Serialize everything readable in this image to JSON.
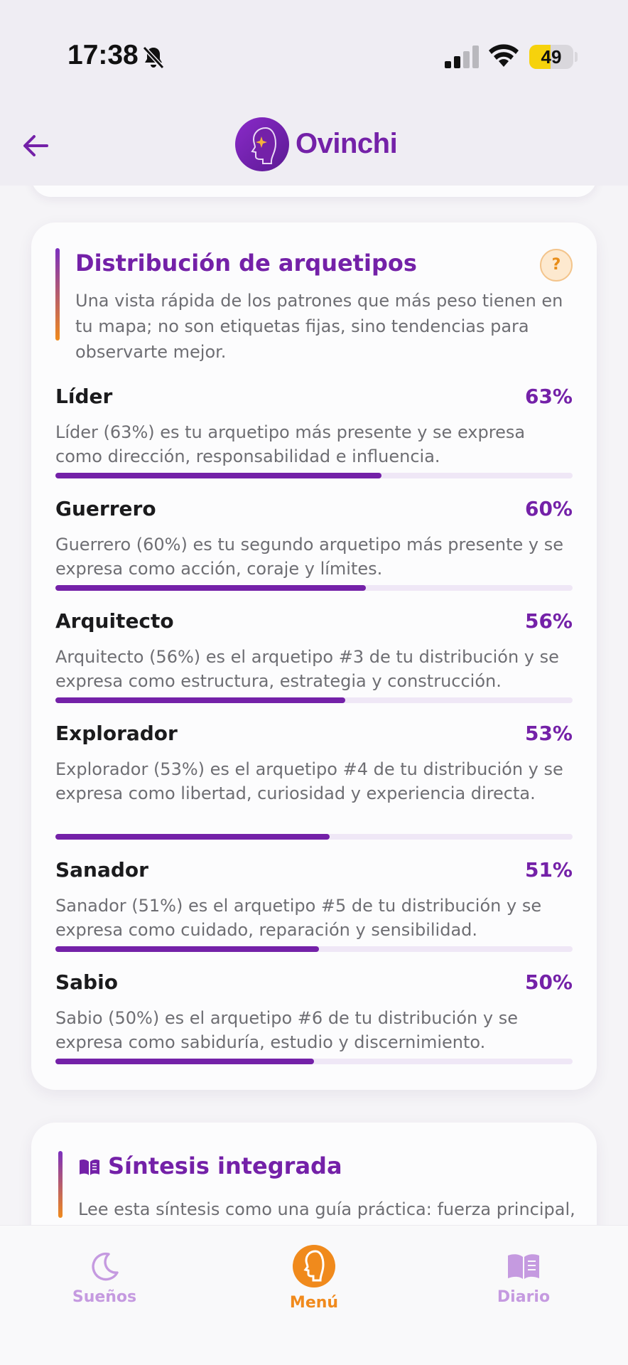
{
  "status_bar": {
    "time": "17:38",
    "battery": "49",
    "battery_level": 0.49
  },
  "header": {
    "logo_text": "Ovinchi"
  },
  "archetypes_card": {
    "title": "Distribución de arquetipos",
    "help_label": "?",
    "description": "Una vista rápida de los patrones que más peso tienen en tu mapa; no son etiquetas fijas, sino tendencias para observarte mejor.",
    "items": [
      {
        "name": "Líder",
        "percent_label": "63%",
        "value": 63,
        "description": "Líder (63%) es tu arquetipo más presente y se expresa como dirección, responsabilidad e influencia."
      },
      {
        "name": "Guerrero",
        "percent_label": "60%",
        "value": 60,
        "description": "Guerrero (60%) es tu segundo arquetipo más presente y se expresa como acción, coraje y límites."
      },
      {
        "name": "Arquitecto",
        "percent_label": "56%",
        "value": 56,
        "description": "Arquitecto (56%) es el arquetipo #3 de tu distribución y se expresa como estructura, estrategia y construcción."
      },
      {
        "name": "Explorador",
        "percent_label": "53%",
        "value": 53,
        "description": "Explorador (53%) es el arquetipo #4 de tu distribución y se expresa como libertad, curiosidad y experiencia directa."
      },
      {
        "name": "Sanador",
        "percent_label": "51%",
        "value": 51,
        "description": "Sanador (51%) es el arquetipo #5 de tu distribución y se expresa como cuidado, reparación y sensibilidad."
      },
      {
        "name": "Sabio",
        "percent_label": "50%",
        "value": 50,
        "description": "Sabio (50%) es el arquetipo #6 de tu distribución y se expresa como sabiduría, estudio y discernimiento."
      }
    ]
  },
  "synthesis_card": {
    "title": "Síntesis integrada",
    "description": "Lee esta síntesis como una guía práctica: fuerza principal, tensión, hábito clave y puerta de sensibilidad."
  },
  "tab_bar": {
    "tabs": [
      {
        "label": "Sueños",
        "icon": "moon-icon"
      },
      {
        "label": "Menú",
        "icon": "ovinchi-face-icon"
      },
      {
        "label": "Diario",
        "icon": "book-icon"
      }
    ],
    "active": "Menú"
  },
  "colors": {
    "primary": "#7421a8",
    "accent": "#f08a1c",
    "track": "#efe7f6"
  }
}
